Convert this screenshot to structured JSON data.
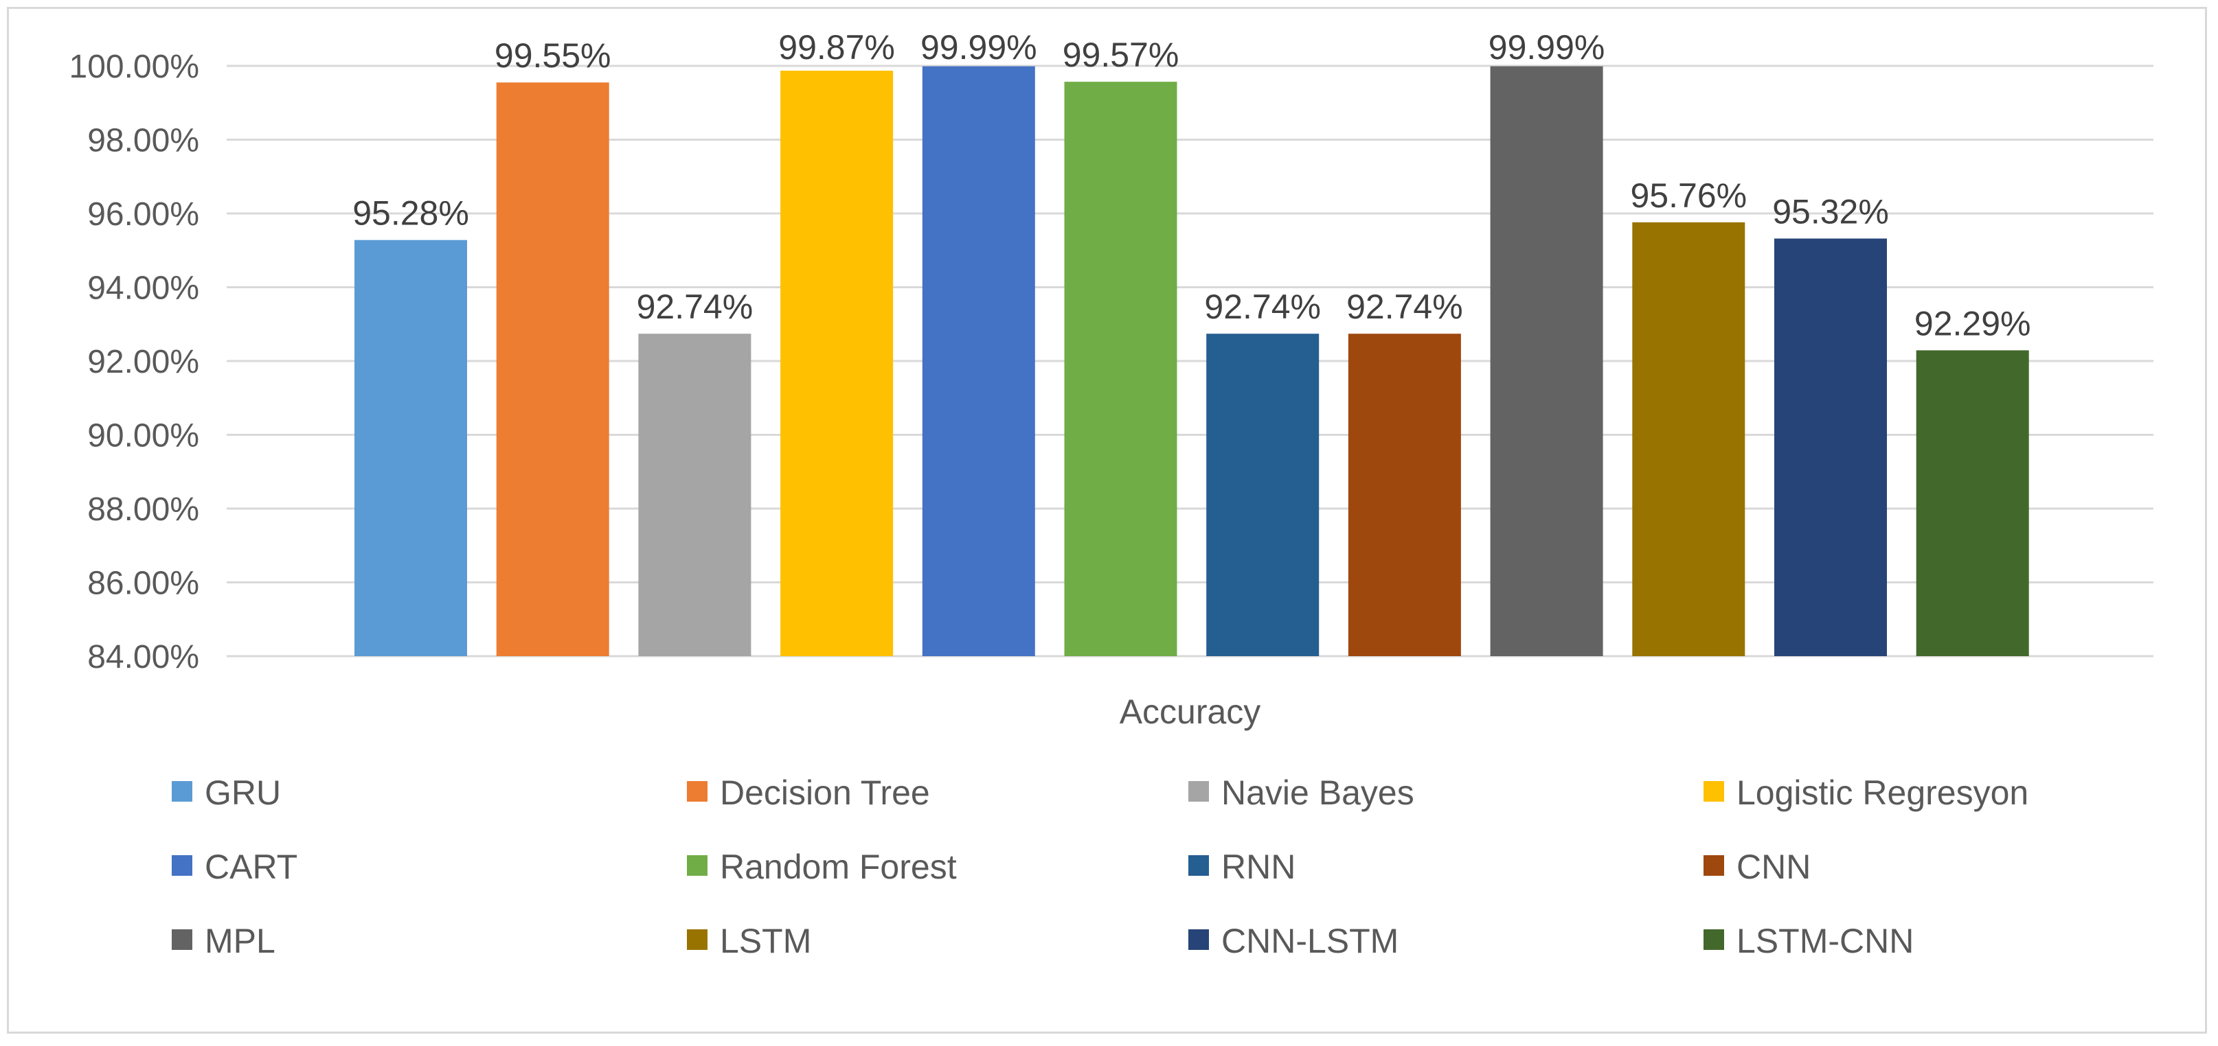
{
  "chart_data": {
    "type": "bar",
    "title": "",
    "xlabel": "Accuracy",
    "ylabel": "",
    "ylim": [
      84,
      100
    ],
    "y_tick_step": 2,
    "y_tick_labels": [
      "84.00%",
      "86.00%",
      "88.00%",
      "90.00%",
      "92.00%",
      "94.00%",
      "96.00%",
      "98.00%",
      "100.00%"
    ],
    "categories": [
      "Accuracy"
    ],
    "grid": true,
    "legend_position": "bottom",
    "series": [
      {
        "name": "GRU",
        "value": 95.28,
        "label": "95.28%",
        "color": "#5b9bd5"
      },
      {
        "name": "Decision Tree",
        "value": 99.55,
        "label": "99.55%",
        "color": "#ed7d31"
      },
      {
        "name": "Navie Bayes",
        "value": 92.74,
        "label": "92.74%",
        "color": "#a5a5a5"
      },
      {
        "name": "Logistic Regresyon",
        "value": 99.87,
        "label": "99.87%",
        "color": "#ffc000"
      },
      {
        "name": "CART",
        "value": 99.99,
        "label": "99.99%",
        "color": "#4472c4"
      },
      {
        "name": "Random Forest",
        "value": 99.57,
        "label": "99.57%",
        "color": "#70ad47"
      },
      {
        "name": "RNN",
        "value": 92.74,
        "label": "92.74%",
        "color": "#255e91"
      },
      {
        "name": "CNN",
        "value": 92.74,
        "label": "92.74%",
        "color": "#9e480e"
      },
      {
        "name": "MPL",
        "value": 99.99,
        "label": "99.99%",
        "color": "#636363"
      },
      {
        "name": "LSTM",
        "value": 95.76,
        "label": "95.76%",
        "color": "#997300"
      },
      {
        "name": "CNN-LSTM",
        "value": 95.32,
        "label": "95.32%",
        "color": "#264478"
      },
      {
        "name": "LSTM-CNN",
        "value": 92.29,
        "label": "92.29%",
        "color": "#43682b"
      }
    ]
  }
}
